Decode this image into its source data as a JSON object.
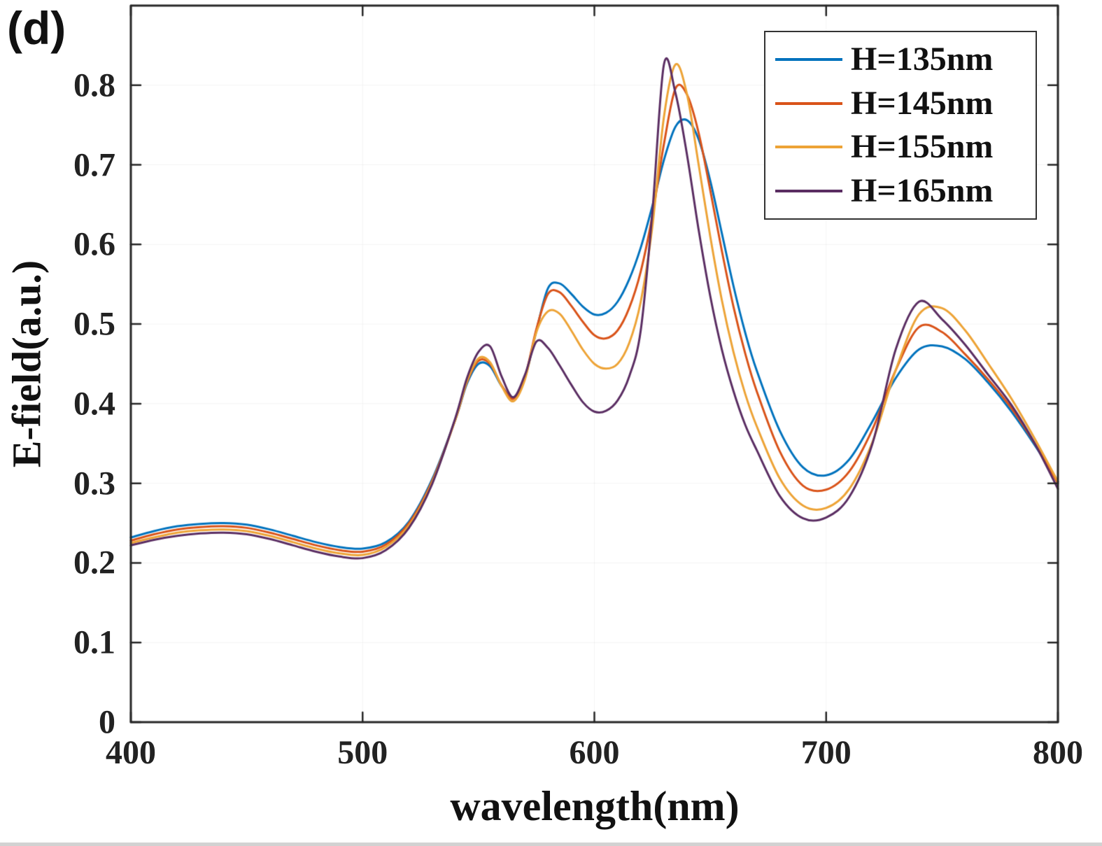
{
  "figure": {
    "panel_label": "(d)"
  },
  "chart_data": {
    "type": "line",
    "title": "",
    "xlabel": "wavelength(nm)",
    "ylabel": "E-field(a.u.)",
    "xlim": [
      400,
      800
    ],
    "ylim": [
      0,
      0.9
    ],
    "xticks": [
      400,
      500,
      600,
      700,
      800
    ],
    "xtick_labels": [
      "400",
      "500",
      "600",
      "700",
      "800"
    ],
    "yticks": [
      0,
      0.1,
      0.2,
      0.3,
      0.4,
      0.5,
      0.6,
      0.7,
      0.8
    ],
    "ytick_labels": [
      "0",
      "0.1",
      "0.2",
      "0.3",
      "0.4",
      "0.5",
      "0.6",
      "0.7",
      "0.8"
    ],
    "grid": false,
    "legend_position": "top-right",
    "axis_color": "#262626",
    "x": [
      400,
      410,
      420,
      430,
      440,
      450,
      460,
      470,
      480,
      490,
      500,
      510,
      520,
      530,
      540,
      545,
      550,
      555,
      560,
      565,
      570,
      575,
      580,
      585,
      590,
      595,
      600,
      605,
      610,
      615,
      620,
      625,
      630,
      635,
      640,
      645,
      650,
      655,
      660,
      665,
      670,
      680,
      690,
      700,
      710,
      720,
      730,
      740,
      750,
      760,
      770,
      780,
      790,
      800
    ],
    "series": [
      {
        "name": "H=135nm",
        "color": "#0072BD",
        "values": [
          0.232,
          0.24,
          0.246,
          0.249,
          0.25,
          0.248,
          0.242,
          0.234,
          0.226,
          0.22,
          0.218,
          0.226,
          0.252,
          0.305,
          0.38,
          0.425,
          0.45,
          0.447,
          0.422,
          0.408,
          0.432,
          0.492,
          0.545,
          0.551,
          0.538,
          0.522,
          0.512,
          0.514,
          0.528,
          0.556,
          0.596,
          0.648,
          0.706,
          0.748,
          0.756,
          0.732,
          0.68,
          0.614,
          0.548,
          0.49,
          0.442,
          0.366,
          0.32,
          0.31,
          0.33,
          0.378,
          0.432,
          0.468,
          0.472,
          0.456,
          0.426,
          0.39,
          0.348,
          0.302
        ]
      },
      {
        "name": "H=145nm",
        "color": "#D95319",
        "values": [
          0.228,
          0.236,
          0.242,
          0.245,
          0.246,
          0.244,
          0.238,
          0.23,
          0.222,
          0.216,
          0.214,
          0.223,
          0.25,
          0.303,
          0.38,
          0.427,
          0.454,
          0.45,
          0.423,
          0.406,
          0.433,
          0.494,
          0.538,
          0.54,
          0.523,
          0.503,
          0.486,
          0.482,
          0.492,
          0.52,
          0.566,
          0.636,
          0.726,
          0.796,
          0.788,
          0.74,
          0.668,
          0.592,
          0.522,
          0.464,
          0.416,
          0.34,
          0.297,
          0.292,
          0.315,
          0.368,
          0.442,
          0.496,
          0.49,
          0.462,
          0.43,
          0.394,
          0.35,
          0.3
        ]
      },
      {
        "name": "H=155nm",
        "color": "#EDA336",
        "values": [
          0.225,
          0.232,
          0.238,
          0.241,
          0.242,
          0.24,
          0.234,
          0.226,
          0.218,
          0.212,
          0.21,
          0.22,
          0.247,
          0.301,
          0.38,
          0.428,
          0.457,
          0.452,
          0.422,
          0.403,
          0.43,
          0.49,
          0.516,
          0.513,
          0.492,
          0.468,
          0.45,
          0.444,
          0.45,
          0.476,
          0.528,
          0.622,
          0.76,
          0.826,
          0.788,
          0.7,
          0.61,
          0.53,
          0.465,
          0.413,
          0.372,
          0.306,
          0.272,
          0.269,
          0.293,
          0.352,
          0.442,
          0.512,
          0.52,
          0.492,
          0.45,
          0.406,
          0.356,
          0.302
        ]
      },
      {
        "name": "H=165nm",
        "color": "#5A2D62",
        "values": [
          0.222,
          0.229,
          0.234,
          0.237,
          0.238,
          0.236,
          0.23,
          0.222,
          0.214,
          0.208,
          0.206,
          0.216,
          0.244,
          0.299,
          0.382,
          0.432,
          0.465,
          0.472,
          0.434,
          0.408,
          0.436,
          0.478,
          0.47,
          0.448,
          0.424,
          0.402,
          0.39,
          0.391,
          0.404,
          0.434,
          0.492,
          0.64,
          0.826,
          0.79,
          0.712,
          0.618,
          0.535,
          0.468,
          0.416,
          0.374,
          0.342,
          0.284,
          0.256,
          0.257,
          0.283,
          0.35,
          0.468,
          0.528,
          0.506,
          0.474,
          0.436,
          0.398,
          0.35,
          0.293
        ]
      }
    ]
  }
}
